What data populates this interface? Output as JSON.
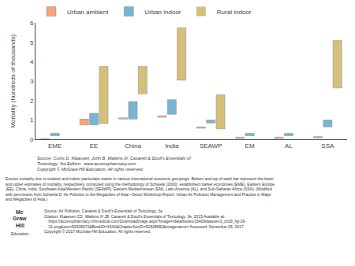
{
  "chart_data": {
    "type": "bar",
    "categories": [
      "EME",
      "EE",
      "China",
      "India",
      "SEAWP",
      "EM",
      "AL",
      "SSA"
    ],
    "series": [
      {
        "name": "Urban ambient",
        "color": "#f4a47e",
        "lower": [
          0.0,
          0.75,
          1.05,
          1.15,
          0.58,
          0.05,
          0.05,
          0.08
        ],
        "upper": [
          0.05,
          1.05,
          1.12,
          1.22,
          0.65,
          0.12,
          0.12,
          0.15
        ]
      },
      {
        "name": "Urban indoor",
        "color": "#7ab4d4",
        "lower": [
          0.2,
          0.75,
          1.05,
          1.3,
          0.85,
          0.2,
          0.2,
          0.65
        ],
        "upper": [
          0.32,
          1.35,
          1.95,
          2.05,
          1.0,
          0.32,
          0.32,
          1.0
        ]
      },
      {
        "name": "Rural indoor",
        "color": "#d4c07a",
        "lower": [
          0.0,
          0.82,
          2.35,
          3.05,
          0.55,
          0.0,
          0.0,
          2.65
        ],
        "upper": [
          0.0,
          3.75,
          3.75,
          5.75,
          2.3,
          0.0,
          0.0,
          5.1
        ]
      }
    ],
    "ylim": [
      0,
      6
    ],
    "yticks": [
      0,
      1,
      2,
      3,
      4,
      5,
      6
    ],
    "ylabel": "Mortality (hundreds of thousands)",
    "legend": "upper left",
    "grid": false,
    "annotations": [
      "Source: Curtis D. Klaassen, John B. Watkins III: Casarett & Doull's Essentials of\nToxicology, 3rd Edition:  www.accesspharmacy.com\nCopyright © McGraw-Hill Education. All rights reserved.",
      "Excess mortality due to outdoor and indoor particulate matter in various international economic groupings. Bottom and top of each bar represent the lower\nand upper estimates of mortality, respectively, computed using the methodology of Schwela (2000): established market economies (EME), Eastern Europe\n(EE), China, India, Southeast Asia/Western Pacific (SEAWP), Eastern Mediterranean (EM), Latin America (AL), and Sub-Saharan Africa (SSA). (Modified\nwith permission from Schwela D: Air Pollution in the Megacities of Asia—Seoul Workshop Report: Urban Air Pollution Management and Practice in Major\nand Megacities of Asia.)",
      "Source: Air Pollution, Casarett & Doull's Essentials of Toxicology, 3e\nCitation: Klaassen CD, Watkins III JB: Casarett & Doull's Essentials of Toxicology, 3e; 2015 Available at:\n    https://accesspharmacy.mhmedical.com/DownloadImage.aspx?image=/data/books/1540/klaassen3_ch29_fig-29-\n    01.png&sec=92528673&BookID=1540&ChapterSecID=92528682&imagename= Accessed: November 05, 2017\nCopyright © 2017 McGraw-Hill Education. All rights reserved.",
      "Mc",
      "Graw",
      "Hill",
      "Education"
    ]
  }
}
